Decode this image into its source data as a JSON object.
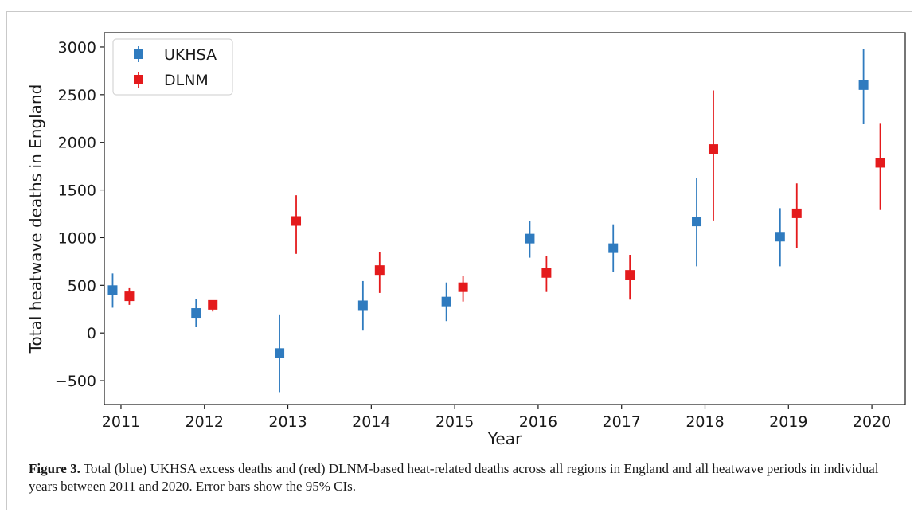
{
  "chart_data": {
    "type": "scatter",
    "categories": [
      "2011",
      "2012",
      "2013",
      "2014",
      "2015",
      "2016",
      "2017",
      "2018",
      "2019",
      "2020"
    ],
    "xlabel": "Year",
    "ylabel": "Total heatwave deaths in England",
    "ylim": [
      -750,
      3150
    ],
    "yticks": [
      -500,
      0,
      500,
      1000,
      1500,
      2000,
      2500,
      3000
    ],
    "grid": false,
    "legend_position": "top-left",
    "series": [
      {
        "name": "UKHSA",
        "color": "#2f7bbf",
        "offset": -0.1,
        "values": [
          450,
          210,
          -210,
          290,
          330,
          990,
          890,
          1170,
          1010,
          2600
        ],
        "lower": [
          265,
          60,
          -620,
          25,
          125,
          790,
          640,
          700,
          700,
          2190
        ],
        "upper": [
          625,
          360,
          195,
          545,
          530,
          1175,
          1140,
          1625,
          1310,
          2980
        ]
      },
      {
        "name": "DLNM",
        "color": "#e41a1c",
        "offset": 0.1,
        "values": [
          385,
          295,
          1175,
          660,
          480,
          630,
          610,
          1930,
          1255,
          1785
        ],
        "lower": [
          295,
          225,
          830,
          420,
          330,
          430,
          350,
          1180,
          890,
          1290
        ],
        "upper": [
          470,
          340,
          1445,
          850,
          600,
          810,
          820,
          2545,
          1570,
          2195
        ]
      }
    ]
  },
  "caption": {
    "label": "Figure 3.",
    "text": " Total (blue) UKHSA excess deaths and (red) DLNM-based heat-related deaths across all regions in England and all heatwave periods in individual years between 2011 and 2020. Error bars show the 95% CIs."
  }
}
